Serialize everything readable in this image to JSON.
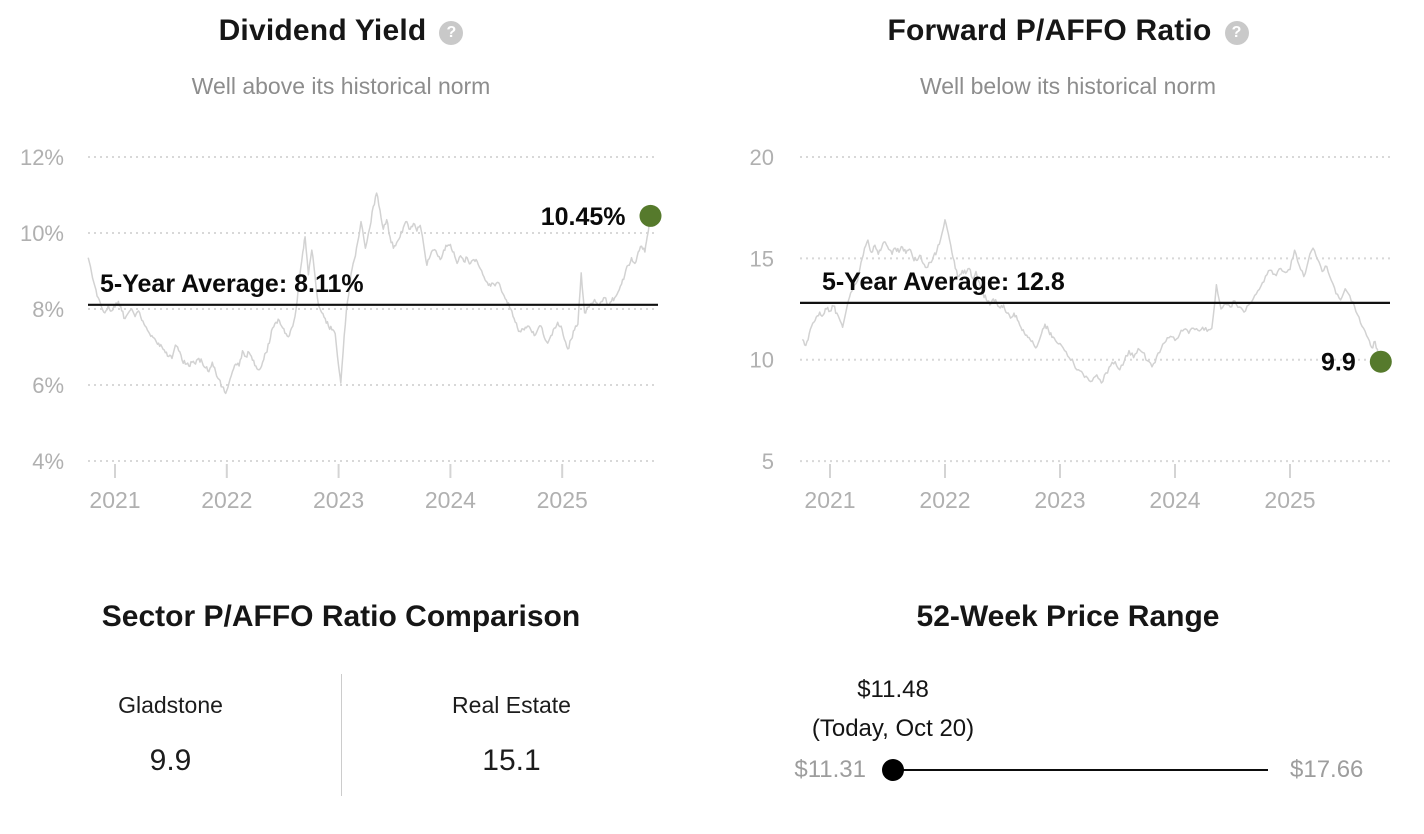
{
  "chart_data": [
    {
      "type": "line",
      "title": "Dividend Yield",
      "subtitle": "Well above its historical norm",
      "help_icon": "?",
      "x_ticks": [
        2021,
        2022,
        2023,
        2024,
        2025
      ],
      "x_tick_labels": [
        "2021",
        "2022",
        "2023",
        "2024",
        "2025"
      ],
      "y_ticks": [
        12,
        10,
        8,
        6,
        4
      ],
      "y_tick_labels": [
        "12%",
        "10%",
        "8%",
        "6%",
        "4%"
      ],
      "xlim": [
        2020.76,
        2025.82
      ],
      "ylim": [
        4,
        12
      ],
      "grid": "dotted-horizontal",
      "legend": "none",
      "average_line": {
        "value": 8.11,
        "label": "5-Year Average: 8.11%"
      },
      "endpoint": {
        "value": 10.45,
        "label": "10.45%"
      },
      "line_color": "#d2d2d2",
      "marker_color": "#567a2c",
      "average_color": "#111111",
      "points": [
        [
          2020.76,
          9.35
        ],
        [
          2020.82,
          8.6
        ],
        [
          2020.85,
          8.3
        ],
        [
          2020.88,
          8.05
        ],
        [
          2020.91,
          7.9
        ],
        [
          2020.94,
          8.1
        ],
        [
          2020.97,
          7.95
        ],
        [
          2021.0,
          8.05
        ],
        [
          2021.03,
          8.2
        ],
        [
          2021.06,
          7.95
        ],
        [
          2021.09,
          7.75
        ],
        [
          2021.12,
          7.9
        ],
        [
          2021.15,
          8.0
        ],
        [
          2021.18,
          7.8
        ],
        [
          2021.21,
          7.95
        ],
        [
          2021.24,
          7.7
        ],
        [
          2021.27,
          7.55
        ],
        [
          2021.3,
          7.4
        ],
        [
          2021.33,
          7.3
        ],
        [
          2021.36,
          7.2
        ],
        [
          2021.39,
          7.1
        ],
        [
          2021.42,
          7.0
        ],
        [
          2021.45,
          6.85
        ],
        [
          2021.48,
          6.75
        ],
        [
          2021.51,
          6.7
        ],
        [
          2021.54,
          7.05
        ],
        [
          2021.57,
          6.9
        ],
        [
          2021.6,
          6.65
        ],
        [
          2021.63,
          6.55
        ],
        [
          2021.66,
          6.5
        ],
        [
          2021.69,
          6.6
        ],
        [
          2021.72,
          6.55
        ],
        [
          2021.75,
          6.7
        ],
        [
          2021.78,
          6.6
        ],
        [
          2021.81,
          6.45
        ],
        [
          2021.84,
          6.35
        ],
        [
          2021.87,
          6.6
        ],
        [
          2021.9,
          6.35
        ],
        [
          2021.93,
          6.15
        ],
        [
          2021.96,
          5.95
        ],
        [
          2021.99,
          5.78
        ],
        [
          2022.02,
          6.05
        ],
        [
          2022.05,
          6.35
        ],
        [
          2022.08,
          6.55
        ],
        [
          2022.11,
          6.5
        ],
        [
          2022.14,
          6.9
        ],
        [
          2022.17,
          6.75
        ],
        [
          2022.2,
          6.85
        ],
        [
          2022.23,
          6.65
        ],
        [
          2022.26,
          6.5
        ],
        [
          2022.29,
          6.4
        ],
        [
          2022.32,
          6.6
        ],
        [
          2022.35,
          6.85
        ],
        [
          2022.38,
          7.1
        ],
        [
          2022.41,
          7.5
        ],
        [
          2022.44,
          7.65
        ],
        [
          2022.47,
          7.7
        ],
        [
          2022.5,
          7.5
        ],
        [
          2022.53,
          7.35
        ],
        [
          2022.56,
          7.3
        ],
        [
          2022.59,
          7.55
        ],
        [
          2022.62,
          8.0
        ],
        [
          2022.65,
          8.8
        ],
        [
          2022.68,
          9.5
        ],
        [
          2022.7,
          9.9
        ],
        [
          2022.73,
          8.9
        ],
        [
          2022.76,
          9.55
        ],
        [
          2022.79,
          8.85
        ],
        [
          2022.82,
          8.1
        ],
        [
          2022.85,
          7.9
        ],
        [
          2022.88,
          7.75
        ],
        [
          2022.91,
          7.55
        ],
        [
          2022.94,
          7.45
        ],
        [
          2022.97,
          7.35
        ],
        [
          2023.0,
          6.5
        ],
        [
          2023.02,
          6.05
        ],
        [
          2023.05,
          7.3
        ],
        [
          2023.08,
          8.2
        ],
        [
          2023.11,
          8.9
        ],
        [
          2023.14,
          9.3
        ],
        [
          2023.17,
          9.75
        ],
        [
          2023.2,
          10.3
        ],
        [
          2023.24,
          9.6
        ],
        [
          2023.28,
          10.15
        ],
        [
          2023.31,
          10.7
        ],
        [
          2023.34,
          11.05
        ],
        [
          2023.37,
          10.6
        ],
        [
          2023.4,
          10.1
        ],
        [
          2023.43,
          10.35
        ],
        [
          2023.46,
          9.9
        ],
        [
          2023.49,
          9.6
        ],
        [
          2023.52,
          9.75
        ],
        [
          2023.55,
          9.9
        ],
        [
          2023.58,
          10.15
        ],
        [
          2023.61,
          10.3
        ],
        [
          2023.64,
          10.1
        ],
        [
          2023.67,
          10.25
        ],
        [
          2023.7,
          10.05
        ],
        [
          2023.73,
          10.2
        ],
        [
          2023.76,
          9.7
        ],
        [
          2023.79,
          9.15
        ],
        [
          2023.82,
          9.4
        ],
        [
          2023.85,
          9.55
        ],
        [
          2023.88,
          9.45
        ],
        [
          2023.91,
          9.3
        ],
        [
          2023.94,
          9.55
        ],
        [
          2023.97,
          9.65
        ],
        [
          2024.0,
          9.7
        ],
        [
          2024.03,
          9.5
        ],
        [
          2024.06,
          9.2
        ],
        [
          2024.09,
          9.4
        ],
        [
          2024.12,
          9.25
        ],
        [
          2024.15,
          9.35
        ],
        [
          2024.18,
          9.2
        ],
        [
          2024.21,
          9.3
        ],
        [
          2024.24,
          9.25
        ],
        [
          2024.27,
          9.05
        ],
        [
          2024.3,
          8.85
        ],
        [
          2024.33,
          8.7
        ],
        [
          2024.36,
          8.6
        ],
        [
          2024.39,
          8.65
        ],
        [
          2024.42,
          8.7
        ],
        [
          2024.45,
          8.55
        ],
        [
          2024.48,
          8.35
        ],
        [
          2024.51,
          8.15
        ],
        [
          2024.54,
          8.0
        ],
        [
          2024.57,
          7.75
        ],
        [
          2024.6,
          7.5
        ],
        [
          2024.63,
          7.4
        ],
        [
          2024.66,
          7.45
        ],
        [
          2024.69,
          7.55
        ],
        [
          2024.72,
          7.45
        ],
        [
          2024.75,
          7.3
        ],
        [
          2024.78,
          7.45
        ],
        [
          2024.81,
          7.55
        ],
        [
          2024.84,
          7.25
        ],
        [
          2024.87,
          7.1
        ],
        [
          2024.9,
          7.3
        ],
        [
          2024.93,
          7.5
        ],
        [
          2024.96,
          7.65
        ],
        [
          2024.99,
          7.55
        ],
        [
          2025.02,
          7.2
        ],
        [
          2025.05,
          6.95
        ],
        [
          2025.08,
          7.2
        ],
        [
          2025.11,
          7.45
        ],
        [
          2025.14,
          7.6
        ],
        [
          2025.17,
          8.95
        ],
        [
          2025.2,
          7.9
        ],
        [
          2025.23,
          8.05
        ],
        [
          2025.26,
          8.15
        ],
        [
          2025.29,
          8.25
        ],
        [
          2025.32,
          8.1
        ],
        [
          2025.35,
          8.2
        ],
        [
          2025.38,
          8.3
        ],
        [
          2025.41,
          8.1
        ],
        [
          2025.44,
          8.2
        ],
        [
          2025.47,
          8.3
        ],
        [
          2025.5,
          8.45
        ],
        [
          2025.53,
          8.65
        ],
        [
          2025.56,
          8.9
        ],
        [
          2025.59,
          9.15
        ],
        [
          2025.62,
          9.35
        ],
        [
          2025.65,
          9.2
        ],
        [
          2025.68,
          9.5
        ],
        [
          2025.71,
          9.65
        ],
        [
          2025.74,
          9.5
        ],
        [
          2025.76,
          9.9
        ],
        [
          2025.79,
          10.45
        ]
      ]
    },
    {
      "type": "line",
      "title": "Forward P/AFFO Ratio",
      "subtitle": "Well below its historical norm",
      "help_icon": "?",
      "x_ticks": [
        2021,
        2022,
        2023,
        2024,
        2025
      ],
      "x_tick_labels": [
        "2021",
        "2022",
        "2023",
        "2024",
        "2025"
      ],
      "y_ticks": [
        20,
        15,
        10,
        5
      ],
      "y_tick_labels": [
        "20",
        "15",
        "10",
        "5"
      ],
      "xlim": [
        2020.76,
        2025.82
      ],
      "ylim": [
        5,
        20
      ],
      "grid": "dotted-horizontal",
      "legend": "none",
      "average_line": {
        "value": 12.8,
        "label": "5-Year Average: 12.8"
      },
      "endpoint": {
        "value": 9.9,
        "label": "9.9"
      },
      "line_color": "#d2d2d2",
      "marker_color": "#567a2c",
      "average_color": "#111111",
      "points": [
        [
          2020.76,
          11.0
        ],
        [
          2020.79,
          10.7
        ],
        [
          2020.82,
          11.3
        ],
        [
          2020.85,
          11.8
        ],
        [
          2020.88,
          12.1
        ],
        [
          2020.91,
          12.35
        ],
        [
          2020.94,
          12.2
        ],
        [
          2020.97,
          12.5
        ],
        [
          2021.0,
          12.4
        ],
        [
          2021.03,
          12.65
        ],
        [
          2021.06,
          12.3
        ],
        [
          2021.09,
          11.9
        ],
        [
          2021.11,
          11.6
        ],
        [
          2021.14,
          12.4
        ],
        [
          2021.17,
          13.1
        ],
        [
          2021.2,
          13.5
        ],
        [
          2021.24,
          13.9
        ],
        [
          2021.27,
          14.8
        ],
        [
          2021.3,
          15.5
        ],
        [
          2021.33,
          15.9
        ],
        [
          2021.36,
          15.3
        ],
        [
          2021.39,
          15.65
        ],
        [
          2021.42,
          15.2
        ],
        [
          2021.45,
          15.55
        ],
        [
          2021.48,
          15.8
        ],
        [
          2021.51,
          15.45
        ],
        [
          2021.54,
          15.2
        ],
        [
          2021.57,
          15.5
        ],
        [
          2021.6,
          15.3
        ],
        [
          2021.63,
          15.55
        ],
        [
          2021.66,
          15.25
        ],
        [
          2021.69,
          15.45
        ],
        [
          2021.72,
          15.05
        ],
        [
          2021.75,
          14.9
        ],
        [
          2021.78,
          15.15
        ],
        [
          2021.81,
          14.75
        ],
        [
          2021.84,
          14.55
        ],
        [
          2021.87,
          14.8
        ],
        [
          2021.9,
          15.1
        ],
        [
          2021.93,
          15.4
        ],
        [
          2021.96,
          15.9
        ],
        [
          2022.0,
          16.9
        ],
        [
          2022.03,
          16.2
        ],
        [
          2022.06,
          15.3
        ],
        [
          2022.09,
          14.5
        ],
        [
          2022.12,
          14.1
        ],
        [
          2022.15,
          14.4
        ],
        [
          2022.18,
          14.25
        ],
        [
          2022.21,
          14.5
        ],
        [
          2022.24,
          14.0
        ],
        [
          2022.27,
          14.35
        ],
        [
          2022.3,
          13.8
        ],
        [
          2022.33,
          13.3
        ],
        [
          2022.36,
          12.95
        ],
        [
          2022.39,
          12.7
        ],
        [
          2022.42,
          13.0
        ],
        [
          2022.45,
          12.8
        ],
        [
          2022.48,
          12.55
        ],
        [
          2022.51,
          12.7
        ],
        [
          2022.54,
          12.3
        ],
        [
          2022.57,
          12.05
        ],
        [
          2022.6,
          12.3
        ],
        [
          2022.63,
          11.95
        ],
        [
          2022.66,
          11.6
        ],
        [
          2022.69,
          11.3
        ],
        [
          2022.72,
          11.1
        ],
        [
          2022.75,
          10.9
        ],
        [
          2022.78,
          10.65
        ],
        [
          2022.81,
          10.8
        ],
        [
          2022.84,
          11.3
        ],
        [
          2022.87,
          11.75
        ],
        [
          2022.9,
          11.45
        ],
        [
          2022.93,
          11.1
        ],
        [
          2022.96,
          10.95
        ],
        [
          2023.0,
          10.8
        ],
        [
          2023.04,
          10.45
        ],
        [
          2023.08,
          10.1
        ],
        [
          2023.12,
          9.8
        ],
        [
          2023.16,
          9.5
        ],
        [
          2023.2,
          9.3
        ],
        [
          2023.24,
          9.1
        ],
        [
          2023.28,
          8.95
        ],
        [
          2023.32,
          9.25
        ],
        [
          2023.36,
          8.85
        ],
        [
          2023.4,
          9.35
        ],
        [
          2023.44,
          9.7
        ],
        [
          2023.48,
          9.9
        ],
        [
          2023.52,
          9.5
        ],
        [
          2023.56,
          9.95
        ],
        [
          2023.6,
          10.45
        ],
        [
          2023.64,
          10.1
        ],
        [
          2023.68,
          10.55
        ],
        [
          2023.72,
          10.35
        ],
        [
          2023.76,
          9.95
        ],
        [
          2023.8,
          9.65
        ],
        [
          2023.84,
          10.15
        ],
        [
          2023.88,
          10.55
        ],
        [
          2023.92,
          10.9
        ],
        [
          2023.96,
          11.15
        ],
        [
          2024.0,
          10.95
        ],
        [
          2024.04,
          11.25
        ],
        [
          2024.08,
          11.5
        ],
        [
          2024.12,
          11.3
        ],
        [
          2024.16,
          11.55
        ],
        [
          2024.2,
          11.45
        ],
        [
          2024.24,
          11.6
        ],
        [
          2024.28,
          11.4
        ],
        [
          2024.32,
          11.55
        ],
        [
          2024.36,
          13.7
        ],
        [
          2024.4,
          12.5
        ],
        [
          2024.44,
          12.75
        ],
        [
          2024.48,
          12.6
        ],
        [
          2024.52,
          12.9
        ],
        [
          2024.56,
          12.6
        ],
        [
          2024.6,
          12.35
        ],
        [
          2024.64,
          12.7
        ],
        [
          2024.68,
          13.0
        ],
        [
          2024.72,
          13.4
        ],
        [
          2024.76,
          13.8
        ],
        [
          2024.8,
          14.2
        ],
        [
          2024.84,
          14.4
        ],
        [
          2024.88,
          14.15
        ],
        [
          2024.92,
          14.5
        ],
        [
          2024.96,
          14.3
        ],
        [
          2025.0,
          14.45
        ],
        [
          2025.04,
          15.4
        ],
        [
          2025.08,
          14.65
        ],
        [
          2025.12,
          14.1
        ],
        [
          2025.16,
          14.9
        ],
        [
          2025.2,
          15.5
        ],
        [
          2025.24,
          14.95
        ],
        [
          2025.28,
          14.35
        ],
        [
          2025.32,
          14.6
        ],
        [
          2025.36,
          13.9
        ],
        [
          2025.4,
          13.25
        ],
        [
          2025.44,
          12.95
        ],
        [
          2025.48,
          13.5
        ],
        [
          2025.52,
          13.15
        ],
        [
          2025.56,
          12.65
        ],
        [
          2025.6,
          12.1
        ],
        [
          2025.64,
          11.55
        ],
        [
          2025.68,
          11.05
        ],
        [
          2025.71,
          10.6
        ],
        [
          2025.74,
          10.9
        ],
        [
          2025.77,
          10.15
        ],
        [
          2025.79,
          9.9
        ]
      ]
    }
  ],
  "comparison": {
    "title": "Sector P/AFFO Ratio Comparison",
    "columns": [
      {
        "label": "Gladstone",
        "value": "9.9"
      },
      {
        "label": "Real Estate",
        "value": "15.1"
      }
    ]
  },
  "price_range": {
    "title": "52-Week Price Range",
    "current_price": "$11.48",
    "current_note": "(Today, Oct 20)",
    "low": "$11.31",
    "high": "$17.66",
    "low_value": 11.31,
    "high_value": 17.66,
    "current_value": 11.48
  }
}
